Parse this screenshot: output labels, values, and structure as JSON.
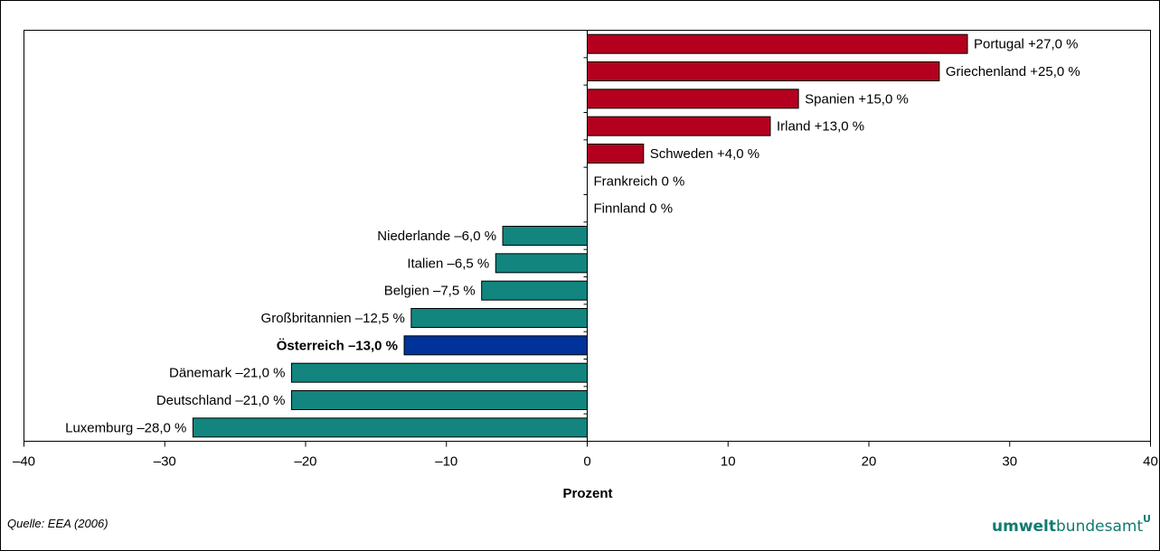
{
  "chart_data": {
    "type": "bar",
    "orientation": "horizontal",
    "xlabel": "Prozent",
    "xlim": [
      -40,
      40
    ],
    "xticks": [
      -40,
      -30,
      -20,
      -10,
      0,
      10,
      20,
      30,
      40
    ],
    "xtick_labels": [
      "–40",
      "–30",
      "–20",
      "–10",
      "0",
      "10",
      "20",
      "30",
      "40"
    ],
    "grid": false,
    "categories": [
      "Portugal",
      "Griechenland",
      "Spanien",
      "Irland",
      "Schweden",
      "Frankreich",
      "Finnland",
      "Niederlande",
      "Italien",
      "Belgien",
      "Großbritannien",
      "Österreich",
      "Dänemark",
      "Deutschland",
      "Luxemburg"
    ],
    "values": [
      27.0,
      25.0,
      15.0,
      13.0,
      4.0,
      0,
      0,
      -6.0,
      -6.5,
      -7.5,
      -12.5,
      -13.0,
      -21.0,
      -21.0,
      -28.0
    ],
    "value_labels": [
      "+27,0 %",
      "+25,0 %",
      "+15,0 %",
      "+13,0 %",
      "+4,0 %",
      "0 %",
      "0 %",
      "–6,0 %",
      "–6,5 %",
      "–7,5 %",
      "–12,5 %",
      "–13,0 %",
      "–21,0 %",
      "–21,0 %",
      "–28,0 %"
    ],
    "highlight_category": "Österreich",
    "colors": {
      "positive": "#b4001e",
      "negative": "#12857f",
      "highlight": "#003399",
      "bar_stroke": "#000000"
    }
  },
  "footer": {
    "source": "Quelle: EEA (2006)",
    "logo_bold": "umwelt",
    "logo_light": "bundesamt",
    "logo_mark": "U"
  }
}
